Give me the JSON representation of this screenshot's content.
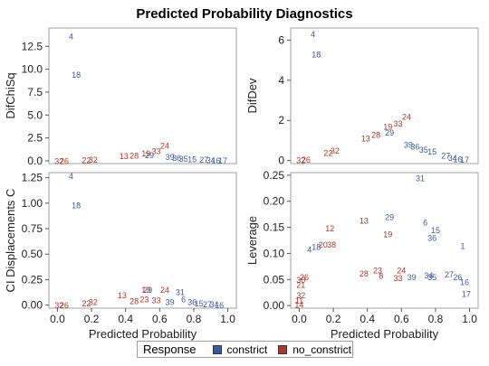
{
  "title": "Predicted Probability Diagnostics",
  "legend": {
    "title": "Response",
    "items": [
      {
        "label": "constrict",
        "color": "#3d5a9e"
      },
      {
        "label": "no_constrict",
        "color": "#a63a2f"
      }
    ]
  },
  "chart_data": [
    {
      "type": "scatter",
      "ylabel": "DifChiSq",
      "xlabel": "",
      "xlim": [
        -0.05,
        1.05
      ],
      "ylim": [
        -0.3,
        14.5
      ],
      "yticks": [
        "0.0",
        "2.5",
        "5.0",
        "7.5",
        "10.0",
        "12.5"
      ],
      "ytick_values": [
        0,
        2.5,
        5,
        7.5,
        10,
        12.5
      ],
      "xticks": [],
      "series": [
        {
          "name": "constrict",
          "points": [
            {
              "label": "4",
              "x": 0.08,
              "y": 13.6
            },
            {
              "label": "18",
              "x": 0.11,
              "y": 9.4
            },
            {
              "label": "39",
              "x": 0.66,
              "y": 0.45
            },
            {
              "label": "36",
              "x": 0.7,
              "y": 0.35
            },
            {
              "label": "35",
              "x": 0.74,
              "y": 0.25
            },
            {
              "label": "15",
              "x": 0.79,
              "y": 0.2
            },
            {
              "label": "27",
              "x": 0.86,
              "y": 0.12
            },
            {
              "label": "34",
              "x": 0.9,
              "y": 0.08
            },
            {
              "label": "16",
              "x": 0.93,
              "y": 0.05
            },
            {
              "label": "17",
              "x": 0.97,
              "y": 0.03
            },
            {
              "label": "29",
              "x": 0.54,
              "y": 0.65
            }
          ]
        },
        {
          "name": "no_constrict",
          "points": [
            {
              "label": "32",
              "x": 0.01,
              "y": 0.02
            },
            {
              "label": "26",
              "x": 0.04,
              "y": 0.02
            },
            {
              "label": "22",
              "x": 0.17,
              "y": 0.1
            },
            {
              "label": "32",
              "x": 0.21,
              "y": 0.15
            },
            {
              "label": "13",
              "x": 0.39,
              "y": 0.55
            },
            {
              "label": "28",
              "x": 0.45,
              "y": 0.6
            },
            {
              "label": "19",
              "x": 0.52,
              "y": 0.85
            },
            {
              "label": "33",
              "x": 0.58,
              "y": 1.1
            },
            {
              "label": "24",
              "x": 0.63,
              "y": 1.65
            }
          ]
        }
      ]
    },
    {
      "type": "scatter",
      "ylabel": "DifDev",
      "xlabel": "",
      "xlim": [
        -0.05,
        1.05
      ],
      "ylim": [
        -0.15,
        6.6
      ],
      "yticks": [
        "0",
        "2",
        "4",
        "6"
      ],
      "ytick_values": [
        0,
        2,
        4,
        6
      ],
      "xticks": [],
      "series": [
        {
          "name": "constrict",
          "points": [
            {
              "label": "4",
              "x": 0.08,
              "y": 6.3
            },
            {
              "label": "18",
              "x": 0.1,
              "y": 5.3
            },
            {
              "label": "39",
              "x": 0.64,
              "y": 0.8
            },
            {
              "label": "36",
              "x": 0.68,
              "y": 0.7
            },
            {
              "label": "35",
              "x": 0.73,
              "y": 0.55
            },
            {
              "label": "15",
              "x": 0.78,
              "y": 0.45
            },
            {
              "label": "27",
              "x": 0.86,
              "y": 0.25
            },
            {
              "label": "34",
              "x": 0.9,
              "y": 0.15
            },
            {
              "label": "16",
              "x": 0.93,
              "y": 0.08
            },
            {
              "label": "17",
              "x": 0.97,
              "y": 0.05
            },
            {
              "label": "29",
              "x": 0.53,
              "y": 1.4
            }
          ]
        },
        {
          "name": "no_constrict",
          "points": [
            {
              "label": "32",
              "x": 0.01,
              "y": 0.02
            },
            {
              "label": "26",
              "x": 0.04,
              "y": 0.05
            },
            {
              "label": "22",
              "x": 0.17,
              "y": 0.4
            },
            {
              "label": "32",
              "x": 0.21,
              "y": 0.5
            },
            {
              "label": "13",
              "x": 0.39,
              "y": 1.1
            },
            {
              "label": "28",
              "x": 0.45,
              "y": 1.3
            },
            {
              "label": "19",
              "x": 0.52,
              "y": 1.7
            },
            {
              "label": "33",
              "x": 0.58,
              "y": 1.85
            },
            {
              "label": "24",
              "x": 0.63,
              "y": 2.2
            }
          ]
        }
      ]
    },
    {
      "type": "scatter",
      "ylabel": "CI Displacements C",
      "xlabel": "Predicted Probability",
      "xlim": [
        -0.05,
        1.05
      ],
      "ylim": [
        -0.03,
        1.3
      ],
      "yticks": [
        "0.00",
        "0.25",
        "0.50",
        "0.75",
        "1.00",
        "1.25"
      ],
      "ytick_values": [
        0,
        0.25,
        0.5,
        0.75,
        1.0,
        1.25
      ],
      "xticks": [
        "0.0",
        "0.2",
        "0.4",
        "0.6",
        "0.8",
        "1.0"
      ],
      "xtick_values": [
        0,
        0.2,
        0.4,
        0.6,
        0.8,
        1.0
      ],
      "series": [
        {
          "name": "constrict",
          "points": [
            {
              "label": "4",
              "x": 0.08,
              "y": 1.27
            },
            {
              "label": "18",
              "x": 0.11,
              "y": 0.98
            },
            {
              "label": "31",
              "x": 0.72,
              "y": 0.13
            },
            {
              "label": "6",
              "x": 0.74,
              "y": 0.06
            },
            {
              "label": "39",
              "x": 0.66,
              "y": 0.03
            },
            {
              "label": "36",
              "x": 0.79,
              "y": 0.03
            },
            {
              "label": "15",
              "x": 0.83,
              "y": 0.02
            },
            {
              "label": "27",
              "x": 0.88,
              "y": 0.01
            },
            {
              "label": "34",
              "x": 0.92,
              "y": 0.01
            },
            {
              "label": "16",
              "x": 0.95,
              "y": 0.0
            },
            {
              "label": "29",
              "x": 0.53,
              "y": 0.15
            }
          ]
        },
        {
          "name": "no_constrict",
          "points": [
            {
              "label": "32",
              "x": 0.01,
              "y": 0.0
            },
            {
              "label": "26",
              "x": 0.04,
              "y": 0.0
            },
            {
              "label": "22",
              "x": 0.17,
              "y": 0.02
            },
            {
              "label": "32",
              "x": 0.21,
              "y": 0.03
            },
            {
              "label": "13",
              "x": 0.38,
              "y": 0.1
            },
            {
              "label": "28",
              "x": 0.45,
              "y": 0.04
            },
            {
              "label": "23",
              "x": 0.51,
              "y": 0.06
            },
            {
              "label": "19",
              "x": 0.52,
              "y": 0.15
            },
            {
              "label": "24",
              "x": 0.63,
              "y": 0.15
            },
            {
              "label": "33",
              "x": 0.58,
              "y": 0.05
            }
          ]
        }
      ]
    },
    {
      "type": "scatter",
      "ylabel": "Leverage",
      "xlabel": "Predicted Probability",
      "xlim": [
        -0.05,
        1.05
      ],
      "ylim": [
        -0.005,
        0.255
      ],
      "yticks": [
        "0.00",
        "0.05",
        "0.10",
        "0.15",
        "0.20",
        "0.25"
      ],
      "ytick_values": [
        0,
        0.05,
        0.1,
        0.15,
        0.2,
        0.25
      ],
      "xticks": [
        "0.0",
        "0.2",
        "0.4",
        "0.6",
        "0.8",
        "1.0"
      ],
      "xtick_values": [
        0,
        0.2,
        0.4,
        0.6,
        0.8,
        1.0
      ],
      "series": [
        {
          "name": "constrict",
          "points": [
            {
              "label": "31",
              "x": 0.71,
              "y": 0.245
            },
            {
              "label": "29",
              "x": 0.53,
              "y": 0.17
            },
            {
              "label": "6",
              "x": 0.74,
              "y": 0.16
            },
            {
              "label": "15",
              "x": 0.8,
              "y": 0.145
            },
            {
              "label": "36",
              "x": 0.78,
              "y": 0.13
            },
            {
              "label": "1",
              "x": 0.96,
              "y": 0.115
            },
            {
              "label": "18",
              "x": 0.1,
              "y": 0.113
            },
            {
              "label": "4",
              "x": 0.06,
              "y": 0.108
            },
            {
              "label": "39",
              "x": 0.66,
              "y": 0.055
            },
            {
              "label": "34",
              "x": 0.76,
              "y": 0.058
            },
            {
              "label": "35",
              "x": 0.78,
              "y": 0.055
            },
            {
              "label": "27",
              "x": 0.88,
              "y": 0.06
            },
            {
              "label": "26",
              "x": 0.93,
              "y": 0.055
            },
            {
              "label": "16",
              "x": 0.97,
              "y": 0.045
            },
            {
              "label": "17",
              "x": 0.98,
              "y": 0.023
            }
          ]
        },
        {
          "name": "no_constrict",
          "points": [
            {
              "label": "12",
              "x": 0.18,
              "y": 0.148
            },
            {
              "label": "13",
              "x": 0.38,
              "y": 0.163
            },
            {
              "label": "19",
              "x": 0.52,
              "y": 0.137
            },
            {
              "label": "20",
              "x": 0.14,
              "y": 0.117
            },
            {
              "label": "38",
              "x": 0.19,
              "y": 0.117
            },
            {
              "label": "28",
              "x": 0.38,
              "y": 0.062
            },
            {
              "label": "23",
              "x": 0.46,
              "y": 0.068
            },
            {
              "label": "8",
              "x": 0.48,
              "y": 0.057
            },
            {
              "label": "24",
              "x": 0.6,
              "y": 0.068
            },
            {
              "label": "33",
              "x": 0.58,
              "y": 0.053
            },
            {
              "label": "26",
              "x": 0.03,
              "y": 0.055
            },
            {
              "label": "30",
              "x": 0.01,
              "y": 0.05
            },
            {
              "label": "21",
              "x": 0.01,
              "y": 0.04
            },
            {
              "label": "32",
              "x": 0.01,
              "y": 0.02
            },
            {
              "label": "11",
              "x": 0.0,
              "y": 0.01
            },
            {
              "label": "14",
              "x": 0.0,
              "y": 0.002
            }
          ]
        }
      ]
    }
  ]
}
